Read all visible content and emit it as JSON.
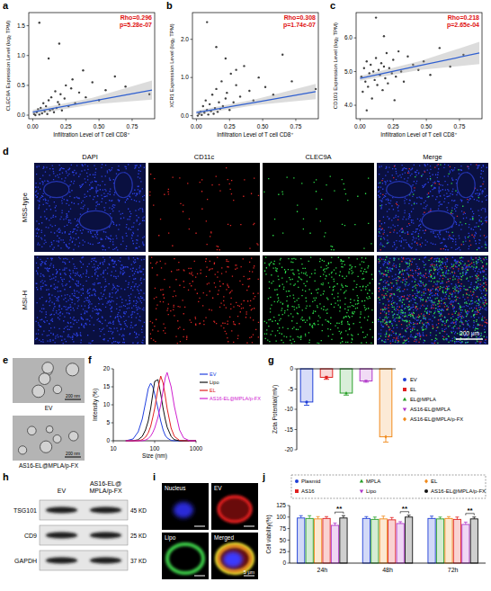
{
  "chart_data": [
    {
      "type": "scatter",
      "x_label": "Infiltration Level of T cell CD8⁺",
      "y_label": "CLEC9A Expression Level (log₂ TPM)",
      "annotations": [
        "Rho=0.296",
        "p=5.28e-07"
      ],
      "xlim": [
        -0.03,
        0.92
      ],
      "ylim": [
        -0.06,
        1.72
      ],
      "xticks": [
        {
          "value": 0,
          "label": "0.00"
        },
        0.25,
        {
          "value": 0.5,
          "label": "0.50"
        },
        0.75
      ],
      "yticks": [
        {
          "value": 0,
          "label": "0.0"
        },
        0.5,
        {
          "value": 1,
          "label": "1.0"
        },
        1.5
      ],
      "series": [
        {
          "type": "scatter",
          "color": "#404040",
          "x": [
            0.01,
            0.02,
            0.03,
            0.04,
            0.05,
            0.06,
            0.07,
            0.08,
            0.09,
            0.1,
            0.11,
            0.12,
            0.13,
            0.14,
            0.15,
            0.16,
            0.17,
            0.18,
            0.19,
            0.2,
            0.21,
            0.22,
            0.24,
            0.25,
            0.27,
            0.29,
            0.3,
            0.32,
            0.35,
            0.38,
            0.4,
            0.45,
            0.5,
            0.55,
            0.62,
            0.7,
            0.88,
            0.05,
            0.12,
            0.2
          ],
          "values": [
            0.02,
            0.0,
            0.05,
            0.1,
            0.01,
            0.12,
            0.03,
            0.2,
            0.06,
            0.15,
            0.02,
            0.25,
            0.08,
            0.3,
            0.1,
            0.05,
            0.4,
            0.12,
            0.22,
            0.18,
            0.35,
            0.08,
            0.28,
            0.5,
            0.15,
            0.45,
            0.6,
            0.2,
            0.38,
            0.75,
            0.3,
            0.55,
            0.25,
            0.42,
            0.65,
            0.48,
            0.35,
            1.55,
            0.95,
            1.2
          ]
        },
        {
          "type": "line",
          "color": "#2f5fd0",
          "x": [
            0,
            0.45,
            0.9
          ],
          "values": [
            0.05,
            0.235,
            0.42
          ],
          "lower": [
            0.01,
            0.18,
            0.26
          ],
          "upper": [
            0.09,
            0.29,
            0.58
          ]
        }
      ]
    },
    {
      "type": "scatter",
      "x_label": "Infiltration Level of T cell CD8⁺",
      "y_label": "XCR1 Expression Level (log₂ TPM)",
      "annotations": [
        "Rho=0.308",
        "p=1.74e-07"
      ],
      "xlim": [
        -0.03,
        0.92
      ],
      "ylim": [
        -0.08,
        2.7
      ],
      "xticks": [
        {
          "value": 0,
          "label": "0.00"
        },
        0.25,
        {
          "value": 0.5,
          "label": "0.50"
        },
        0.75
      ],
      "yticks": [
        {
          "value": 0,
          "label": "0.0"
        },
        {
          "value": 1,
          "label": "1.0"
        },
        {
          "value": 2,
          "label": "2.0"
        }
      ],
      "series": [
        {
          "type": "scatter",
          "color": "#404040",
          "x": [
            0.01,
            0.02,
            0.03,
            0.04,
            0.05,
            0.06,
            0.07,
            0.08,
            0.09,
            0.1,
            0.11,
            0.12,
            0.13,
            0.14,
            0.15,
            0.16,
            0.17,
            0.18,
            0.19,
            0.2,
            0.22,
            0.23,
            0.25,
            0.26,
            0.28,
            0.3,
            0.33,
            0.36,
            0.4,
            0.43,
            0.47,
            0.52,
            0.58,
            0.65,
            0.72,
            0.9,
            0.08,
            0.15,
            0.22,
            0.3
          ],
          "values": [
            0.0,
            0.05,
            0.1,
            0.02,
            0.25,
            0.08,
            0.4,
            0.15,
            0.03,
            0.3,
            0.12,
            0.55,
            0.05,
            0.2,
            0.7,
            0.1,
            0.35,
            0.18,
            0.9,
            0.25,
            0.45,
            0.6,
            0.15,
            1.1,
            0.35,
            0.8,
            0.5,
            1.3,
            0.65,
            0.4,
            1.0,
            0.75,
            0.55,
            1.6,
            0.9,
            0.7,
            2.45,
            1.8,
            1.5,
            1.2
          ]
        },
        {
          "type": "line",
          "color": "#2f5fd0",
          "x": [
            0,
            0.45,
            0.9
          ],
          "values": [
            0.08,
            0.355,
            0.63
          ],
          "lower": [
            0.03,
            0.28,
            0.43
          ],
          "upper": [
            0.13,
            0.43,
            0.83
          ]
        }
      ]
    },
    {
      "type": "scatter",
      "x_label": "Infiltration Level of T cell CD8⁺",
      "y_label": "CD103 Expression Level (log₂ TPM)",
      "annotations": [
        "Rho=0.218",
        "p=2.65e-04"
      ],
      "xlim": [
        -0.03,
        0.92
      ],
      "ylim": [
        3.6,
        6.75
      ],
      "xticks": [
        {
          "value": 0,
          "label": "0.00"
        },
        0.25,
        {
          "value": 0.5,
          "label": "0.50"
        },
        0.75
      ],
      "yticks": [
        {
          "value": 4,
          "label": "4.0"
        },
        {
          "value": 5,
          "label": "5.0"
        },
        {
          "value": 6,
          "label": "6.0"
        }
      ],
      "series": [
        {
          "type": "scatter",
          "color": "#404040",
          "x": [
            0.01,
            0.02,
            0.03,
            0.04,
            0.05,
            0.06,
            0.07,
            0.08,
            0.09,
            0.1,
            0.11,
            0.12,
            0.13,
            0.14,
            0.15,
            0.16,
            0.17,
            0.18,
            0.19,
            0.2,
            0.21,
            0.22,
            0.24,
            0.25,
            0.27,
            0.29,
            0.31,
            0.33,
            0.36,
            0.4,
            0.44,
            0.48,
            0.53,
            0.6,
            0.68,
            0.78,
            0.05,
            0.12,
            0.18,
            0.26
          ],
          "values": [
            4.85,
            4.4,
            5.1,
            4.7,
            5.3,
            4.55,
            4.95,
            5.2,
            4.2,
            5.0,
            4.75,
            5.4,
            4.6,
            5.05,
            4.9,
            5.25,
            4.45,
            5.15,
            4.8,
            5.55,
            4.65,
            5.1,
            4.95,
            5.35,
            4.85,
            5.6,
            5.0,
            4.7,
            5.45,
            5.2,
            5.05,
            5.3,
            4.9,
            5.7,
            5.15,
            5.5,
            3.85,
            6.6,
            6.05,
            4.15
          ]
        },
        {
          "type": "line",
          "color": "#2f5fd0",
          "x": [
            0,
            0.45,
            0.9
          ],
          "values": [
            4.8,
            5.18,
            5.55
          ],
          "lower": [
            4.73,
            5.05,
            5.22
          ],
          "upper": [
            4.87,
            5.31,
            5.88
          ]
        }
      ]
    },
    {
      "type": "line",
      "x_label": "Size (nm)",
      "y_label": "Intensity (%)",
      "log": "x",
      "xlim": [
        10,
        1000
      ],
      "xticks": [
        10,
        100,
        1000
      ],
      "ylim": [
        0,
        20
      ],
      "yticks": [
        0,
        5,
        10,
        15,
        20
      ],
      "legend": "right",
      "x": [
        20,
        30,
        40,
        50,
        60,
        70,
        80,
        90,
        100,
        120,
        140,
        160,
        180,
        200,
        250,
        300,
        400,
        500,
        700,
        1000
      ],
      "series": [
        {
          "name": "EV",
          "color": "#2040e0",
          "values": [
            0,
            0.5,
            2.5,
            6,
            10.5,
            14.5,
            16,
            15,
            13,
            9,
            5.5,
            3,
            1.5,
            0.8,
            0.1,
            0,
            0,
            0,
            0,
            0
          ]
        },
        {
          "name": "Lipo",
          "color": "#111111",
          "values": [
            0,
            0,
            0.3,
            1.2,
            3,
            5.5,
            9,
            13,
            16.5,
            17,
            13,
            9,
            6,
            3.8,
            1.2,
            0.3,
            0,
            0,
            0,
            0
          ]
        },
        {
          "name": "EL",
          "color": "#e02020",
          "values": [
            0,
            0,
            0,
            0.3,
            1,
            2.2,
            4,
            6.5,
            9,
            14.5,
            18,
            16,
            12.5,
            9,
            3.5,
            1.2,
            0.1,
            0,
            0,
            0
          ]
        },
        {
          "name": "AS16-EL@MPLA/p-FX",
          "color": "#d020d0",
          "values": [
            0,
            0,
            0,
            0,
            0.2,
            0.6,
            1.3,
            2.3,
            3.5,
            6.5,
            10,
            14,
            17.5,
            19,
            15,
            9.5,
            3,
            0.8,
            0,
            0
          ]
        }
      ]
    },
    {
      "type": "bar",
      "y_label": "Zeta Potential(mV)",
      "categories": [
        "EV",
        "EL",
        "EL@MPLA",
        "AS16-EL@MPLA",
        "AS16-EL@MPLA/p-FX"
      ],
      "values": [
        -8.2,
        -2.1,
        -6.0,
        -3.0,
        -16.8
      ],
      "errors": [
        0.8,
        0.5,
        0.5,
        0.3,
        1.3
      ],
      "colors": [
        "#1f3fd6",
        "#e02020",
        "#2aa02a",
        "#b036c8",
        "#f08a1c"
      ],
      "ylim": [
        -20,
        0
      ],
      "yticks": [
        -20,
        -15,
        -10,
        -5,
        0
      ],
      "legend": "right",
      "tick_labels": "y"
    },
    {
      "type": "bar",
      "y_label": "Cell viability(%)",
      "categories": [
        "24h",
        "48h",
        "72h"
      ],
      "ylim": [
        0,
        125
      ],
      "yticks": [
        0,
        25,
        50,
        75,
        100,
        125
      ],
      "legend": "top",
      "series": [
        {
          "name": "Plasmid",
          "color": "#1f3fd6",
          "values": [
            98,
            97,
            97
          ],
          "errors": [
            5,
            4,
            5
          ]
        },
        {
          "name": "MPLA",
          "color": "#2aa02a",
          "values": [
            97,
            95,
            96
          ],
          "errors": [
            6,
            5,
            4
          ]
        },
        {
          "name": "EL",
          "color": "#f08a1c",
          "values": [
            96,
            96,
            97
          ],
          "errors": [
            5,
            6,
            4
          ]
        },
        {
          "name": "AS16",
          "color": "#e02020",
          "values": [
            97,
            94,
            95
          ],
          "errors": [
            4,
            5,
            5
          ]
        },
        {
          "name": "Lipo",
          "color": "#b036c8",
          "values": [
            82,
            86,
            84
          ],
          "errors": [
            5,
            4,
            5
          ]
        },
        {
          "name": "AS16-EL@MPLA/p-FX",
          "color": "#111111",
          "values": [
            98,
            100,
            96
          ],
          "errors": [
            5,
            4,
            4
          ]
        }
      ],
      "significance": [
        {
          "category": "24h",
          "pair": [
            "Lipo",
            "AS16-EL@MPLA/p-FX"
          ],
          "label": "**"
        },
        {
          "category": "48h",
          "pair": [
            "Lipo",
            "AS16-EL@MPLA/p-FX"
          ],
          "label": "**"
        },
        {
          "category": "72h",
          "pair": [
            "Lipo",
            "AS16-EL@MPLA/p-FX"
          ],
          "label": "**"
        }
      ]
    }
  ],
  "panel_letters": [
    "a",
    "b",
    "c",
    "d",
    "e",
    "f",
    "g",
    "h",
    "i",
    "j"
  ],
  "panel_d": {
    "columns": [
      "DAPI",
      "CD11c",
      "CLEC9A",
      "Merge"
    ],
    "rows": [
      "MSS-type",
      "MSI-H"
    ],
    "scale_bar": "200 μm"
  },
  "panel_e": {
    "images": [
      "EV",
      "AS16-EL@MPLA/p-FX"
    ],
    "scale_bar": "200 nm"
  },
  "panel_h": {
    "columns": [
      "EV",
      "AS16-EL@MPLA/p-FX"
    ],
    "rows": [
      {
        "protein": "TSG101",
        "size": "45 KD"
      },
      {
        "protein": "CD9",
        "size": "25 KD"
      },
      {
        "protein": "GAPDH",
        "size": "37 KD"
      }
    ]
  },
  "panel_i": {
    "images": [
      "Nucleus",
      "EV",
      "Lipo",
      "Merged"
    ],
    "scale_bar": "5 μm"
  }
}
